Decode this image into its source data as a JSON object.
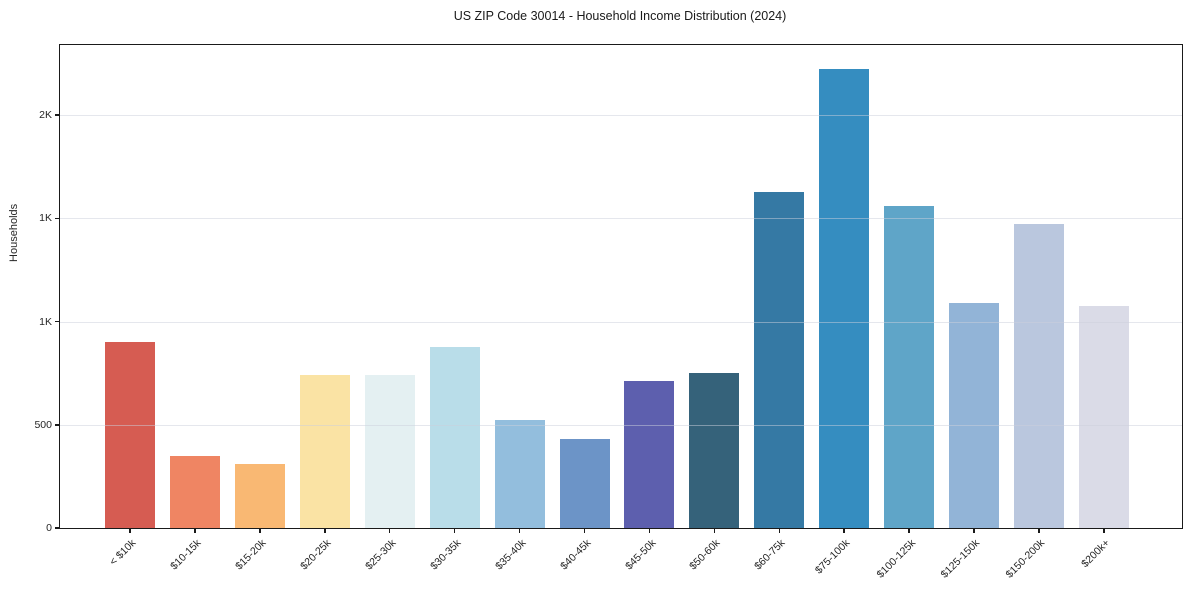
{
  "title": "US ZIP Code 30014 - Household Income Distribution (2024)",
  "chart_data": {
    "type": "bar",
    "title": "US ZIP Code 30014 - Household Income Distribution (2024)",
    "xlabel": "",
    "ylabel": "Households",
    "categories": [
      "< $10k",
      "$10-15k",
      "$15-20k",
      "$20-25k",
      "$25-30k",
      "$30-35k",
      "$35-40k",
      "$40-45k",
      "$45-50k",
      "$50-60k",
      "$60-75k",
      "$75-100k",
      "$100-125k",
      "$125-150k",
      "$150-200k",
      "$200k+"
    ],
    "values": [
      900,
      350,
      310,
      740,
      740,
      875,
      525,
      430,
      710,
      750,
      1630,
      2225,
      1560,
      1090,
      1475,
      1075
    ],
    "bar_colors": [
      "#d65c52",
      "#ef8563",
      "#f9b873",
      "#fae3a4",
      "#e4f0f2",
      "#b9dde9",
      "#93bedd",
      "#6c94c7",
      "#5d5fae",
      "#35627a",
      "#3579a4",
      "#358dc0",
      "#5fa5c8",
      "#92b4d7",
      "#bac7de",
      "#dadbe7"
    ],
    "ylim": [
      0,
      2340
    ],
    "yticks": [
      {
        "value": 0,
        "label": "0"
      },
      {
        "value": 500,
        "label": "500"
      },
      {
        "value": 1000,
        "label": "1K"
      },
      {
        "value": 1500,
        "label": "1K"
      },
      {
        "value": 2000,
        "label": "2K"
      }
    ],
    "grid": "horizontal, drawn over bars, light gray",
    "legend": "none",
    "axis_color": "#1a1a1a",
    "grid_color": "#cbd0dc",
    "background": "#ffffff"
  }
}
